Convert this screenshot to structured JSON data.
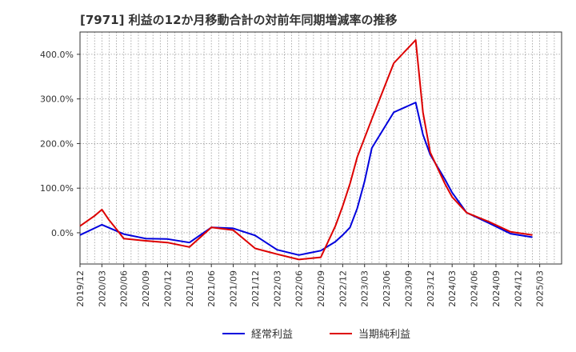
{
  "chart_data": {
    "type": "line",
    "title": "[7971]  利益の12か月移動合計の対前年同期増減率の推移",
    "xlabel": "",
    "ylabel": "",
    "ylim": [
      -70,
      450
    ],
    "yticks": [
      0,
      100,
      200,
      300,
      400
    ],
    "ytick_labels": [
      "0.0%",
      "100.0%",
      "200.0%",
      "300.0%",
      "400.0%"
    ],
    "xlim": [
      0,
      66
    ],
    "xtick_labels": [
      "2019/12",
      "2020/03",
      "2020/06",
      "2020/09",
      "2020/12",
      "2021/03",
      "2021/06",
      "2021/09",
      "2021/12",
      "2022/03",
      "2022/06",
      "2022/09",
      "2022/12",
      "2023/03",
      "2023/06",
      "2023/09",
      "2023/12",
      "2024/03",
      "2024/06",
      "2024/09",
      "2024/12",
      "2025/03"
    ],
    "grid": true,
    "legend_position": "bottom-center",
    "series": [
      {
        "name": "経常利益",
        "color": "#0000dd",
        "points": [
          [
            0,
            -5
          ],
          [
            3,
            18
          ],
          [
            6,
            -3
          ],
          [
            9,
            -13
          ],
          [
            12,
            -14
          ],
          [
            15,
            -22
          ],
          [
            18,
            12
          ],
          [
            21,
            10
          ],
          [
            24,
            -6
          ],
          [
            27,
            -38
          ],
          [
            30,
            -50
          ],
          [
            33,
            -40
          ],
          [
            35,
            -20
          ],
          [
            36,
            -5
          ],
          [
            37,
            12
          ],
          [
            38,
            55
          ],
          [
            39,
            115
          ],
          [
            40,
            190
          ],
          [
            43,
            270
          ],
          [
            46,
            292
          ],
          [
            47,
            220
          ],
          [
            48,
            175
          ],
          [
            50,
            120
          ],
          [
            51,
            90
          ],
          [
            53,
            45
          ],
          [
            56,
            22
          ],
          [
            59,
            -2
          ],
          [
            62,
            -10
          ]
        ]
      },
      {
        "name": "当期純利益",
        "color": "#dd0000",
        "points": [
          [
            0,
            15
          ],
          [
            2,
            38
          ],
          [
            3,
            52
          ],
          [
            4,
            28
          ],
          [
            5,
            8
          ],
          [
            6,
            -13
          ],
          [
            9,
            -18
          ],
          [
            12,
            -22
          ],
          [
            15,
            -32
          ],
          [
            18,
            12
          ],
          [
            21,
            6
          ],
          [
            24,
            -35
          ],
          [
            27,
            -48
          ],
          [
            30,
            -60
          ],
          [
            33,
            -55
          ],
          [
            35,
            15
          ],
          [
            36,
            60
          ],
          [
            37,
            110
          ],
          [
            38,
            170
          ],
          [
            40,
            255
          ],
          [
            43,
            380
          ],
          [
            46,
            432
          ],
          [
            47,
            270
          ],
          [
            48,
            180
          ],
          [
            50,
            110
          ],
          [
            51,
            80
          ],
          [
            53,
            45
          ],
          [
            56,
            25
          ],
          [
            59,
            2
          ],
          [
            62,
            -5
          ]
        ]
      }
    ]
  }
}
